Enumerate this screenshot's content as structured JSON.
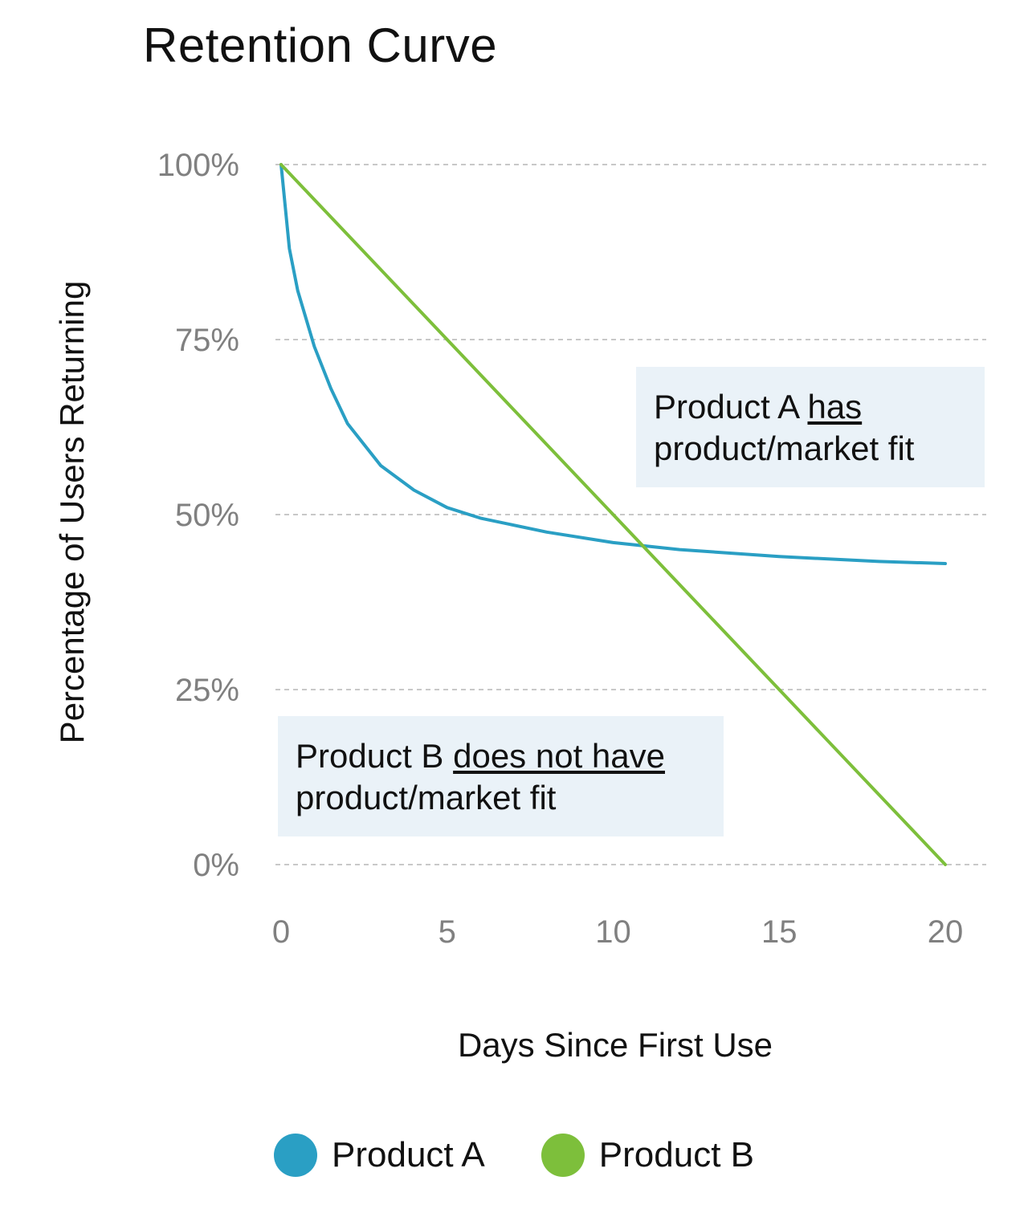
{
  "chart_data": {
    "type": "line",
    "title": "Retention Curve",
    "xlabel": "Days Since First Use",
    "ylabel": "Percentage of Users Returning",
    "xlim": [
      0,
      20
    ],
    "ylim": [
      0,
      100
    ],
    "x_ticks": [
      "0",
      "5",
      "10",
      "15",
      "20"
    ],
    "x_tick_values": [
      0,
      5,
      10,
      15,
      20
    ],
    "y_ticks": [
      "0%",
      "25%",
      "50%",
      "75%",
      "100%"
    ],
    "y_tick_values": [
      0,
      25,
      50,
      75,
      100
    ],
    "grid": "horizontal-dashed",
    "legend_position": "bottom",
    "series": [
      {
        "name": "Product A",
        "color": "#2a9fc4",
        "x": [
          0,
          0.25,
          0.5,
          1,
          1.5,
          2,
          3,
          4,
          5,
          6,
          8,
          10,
          12,
          15,
          18,
          20
        ],
        "y": [
          100,
          88,
          82,
          74,
          68,
          63,
          57,
          53.5,
          51,
          49.5,
          47.5,
          46,
          45,
          44,
          43.3,
          43
        ]
      },
      {
        "name": "Product B",
        "color": "#7dbf3b",
        "x": [
          0,
          20
        ],
        "y": [
          100,
          0
        ]
      }
    ],
    "annotations": [
      {
        "id": "a",
        "prefix": "Product A ",
        "emphasis": "has",
        "line2": "product/market fit"
      },
      {
        "id": "b",
        "prefix": "Product B ",
        "emphasis": "does not have",
        "line2": "product/market fit"
      }
    ]
  }
}
